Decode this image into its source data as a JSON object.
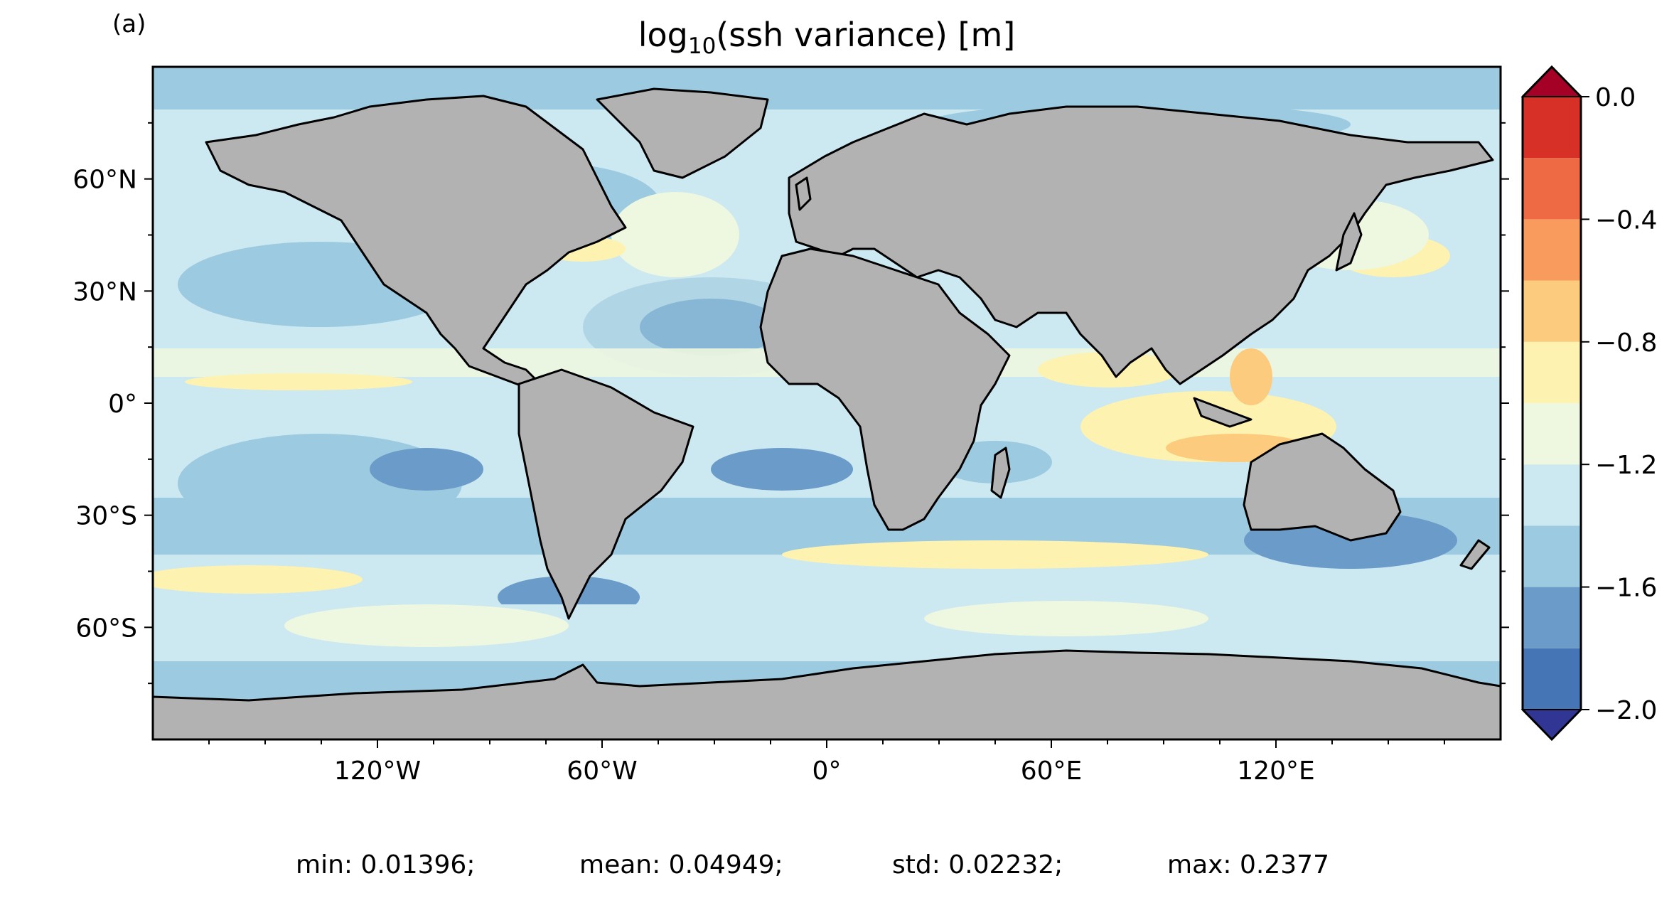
{
  "panel_label": "(a)",
  "title": {
    "prefix": "log",
    "subscript": "10",
    "suffix": "(ssh variance) [m]"
  },
  "map": {
    "projection": "equirectangular",
    "lon_range": [
      -180,
      180
    ],
    "lat_range": [
      -90,
      90
    ],
    "land_color": "#b2b2b2",
    "coast_color": "#000000",
    "x_ticks": [
      {
        "lon": -120,
        "label": "120°W"
      },
      {
        "lon": -60,
        "label": "60°W"
      },
      {
        "lon": 0,
        "label": "0°"
      },
      {
        "lon": 60,
        "label": "60°E"
      },
      {
        "lon": 120,
        "label": "120°E"
      }
    ],
    "y_ticks": [
      {
        "lat": 60,
        "label": "60°N"
      },
      {
        "lat": 30,
        "label": "30°N"
      },
      {
        "lat": 0,
        "label": "0°"
      },
      {
        "lat": -30,
        "label": "30°S"
      },
      {
        "lat": -60,
        "label": "60°S"
      }
    ]
  },
  "colorbar": {
    "levels": [
      -2.0,
      -1.8,
      -1.6,
      -1.4,
      -1.2,
      -1.0,
      -0.8,
      -0.6,
      -0.4,
      -0.2,
      0.0
    ],
    "colors": [
      "#4575b4",
      "#6a9bc9",
      "#9ccae0",
      "#cce8f1",
      "#eef7e0",
      "#fdf2b0",
      "#fdcb7e",
      "#f99b5c",
      "#ee6a45",
      "#d73027"
    ],
    "under_color": "#313695",
    "over_color": "#a50026",
    "tick_labels": [
      {
        "value": 0.0,
        "label": "0.0"
      },
      {
        "value": -0.4,
        "label": "−0.4"
      },
      {
        "value": -0.8,
        "label": "−0.8"
      },
      {
        "value": -1.2,
        "label": "−1.2"
      },
      {
        "value": -1.6,
        "label": "−1.6"
      },
      {
        "value": -2.0,
        "label": "−2.0"
      }
    ]
  },
  "stats": [
    {
      "label": "min: 0.01396;"
    },
    {
      "label": "mean: 0.04949;"
    },
    {
      "label": "std: 0.02232;"
    },
    {
      "label": "max: 0.2377"
    }
  ]
}
